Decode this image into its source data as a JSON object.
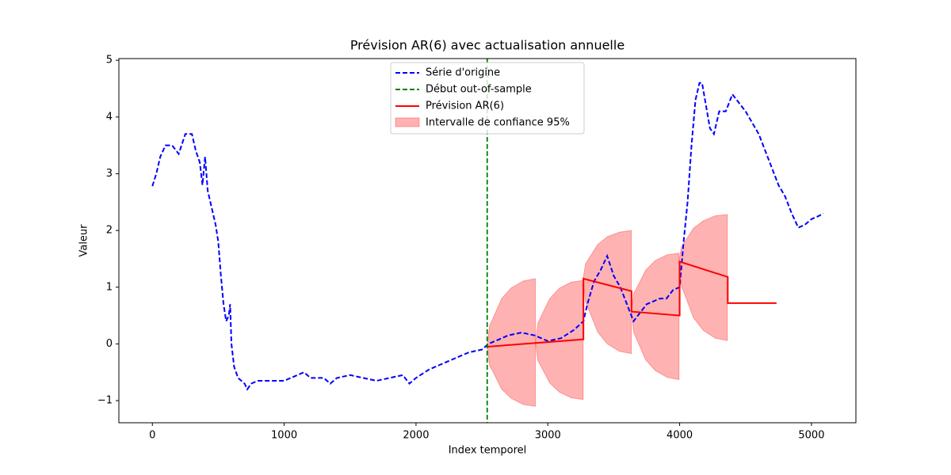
{
  "chart_data": {
    "type": "line",
    "title": "Prévision AR(6) avec actualisation annuelle",
    "xlabel": "Index temporel",
    "ylabel": "Valeur",
    "xlim": [
      -254,
      5337
    ],
    "ylim": [
      -1.39,
      5.03
    ],
    "xticks": [
      0,
      1000,
      2000,
      3000,
      4000,
      5000
    ],
    "yticks": [
      {
        "value": -1,
        "label": "−1"
      },
      0,
      1,
      2,
      3,
      4,
      5
    ],
    "legend": "upper center",
    "series": [
      {
        "name": "Série d'origine",
        "kind": "line",
        "color": "#0000ff",
        "dashed": true,
        "x": [
          0,
          30,
          60,
          100,
          150,
          200,
          250,
          300,
          330,
          360,
          380,
          400,
          420,
          450,
          480,
          500,
          520,
          540,
          560,
          580,
          590,
          600,
          620,
          650,
          700,
          720,
          750,
          800,
          900,
          1000,
          1100,
          1150,
          1200,
          1300,
          1350,
          1400,
          1500,
          1600,
          1700,
          1800,
          1900,
          1950,
          2000,
          2100,
          2200,
          2300,
          2400,
          2500,
          2550,
          2600,
          2700,
          2800,
          2900,
          3000,
          3100,
          3200,
          3270,
          3300,
          3350,
          3400,
          3450,
          3500,
          3550,
          3600,
          3650,
          3700,
          3750,
          3800,
          3850,
          3900,
          3950,
          4000,
          4030,
          4060,
          4090,
          4120,
          4150,
          4170,
          4200,
          4230,
          4260,
          4300,
          4350,
          4400,
          4450,
          4500,
          4550,
          4600,
          4650,
          4700,
          4750,
          4800,
          4850,
          4900,
          4950,
          5000,
          5050,
          5090
        ],
        "values": [
          2.78,
          3.0,
          3.3,
          3.5,
          3.5,
          3.35,
          3.7,
          3.7,
          3.4,
          3.2,
          2.8,
          3.3,
          2.7,
          2.4,
          2.1,
          1.8,
          1.2,
          0.7,
          0.4,
          0.5,
          0.7,
          0.0,
          -0.4,
          -0.6,
          -0.7,
          -0.8,
          -0.7,
          -0.65,
          -0.65,
          -0.65,
          -0.55,
          -0.5,
          -0.6,
          -0.6,
          -0.7,
          -0.6,
          -0.55,
          -0.6,
          -0.65,
          -0.6,
          -0.55,
          -0.7,
          -0.6,
          -0.45,
          -0.35,
          -0.25,
          -0.15,
          -0.1,
          0.0,
          0.05,
          0.15,
          0.2,
          0.15,
          0.05,
          0.1,
          0.25,
          0.4,
          0.7,
          1.1,
          1.3,
          1.55,
          1.2,
          1.0,
          0.7,
          0.4,
          0.55,
          0.7,
          0.75,
          0.8,
          0.8,
          0.95,
          1.0,
          1.8,
          2.5,
          3.5,
          4.3,
          4.6,
          4.6,
          4.2,
          3.8,
          3.7,
          4.1,
          4.1,
          4.4,
          4.25,
          4.1,
          3.9,
          3.7,
          3.4,
          3.1,
          2.8,
          2.6,
          2.3,
          2.05,
          2.1,
          2.2,
          2.25,
          2.3
        ]
      },
      {
        "name": "Début out-of-sample",
        "kind": "vline",
        "color": "#008000",
        "dashed": true,
        "x": 2540
      },
      {
        "name": "Prévision AR(6)",
        "kind": "line",
        "color": "#ff0000",
        "dashed": false,
        "x": [
          2540,
          3270,
          3270,
          3635,
          3635,
          4000,
          4000,
          4365,
          4365,
          4735
        ],
        "values": [
          -0.05,
          0.08,
          1.15,
          0.93,
          0.57,
          0.5,
          1.45,
          1.18,
          0.72,
          0.72
        ]
      },
      {
        "name": "Intervalle de confiance 95%",
        "kind": "band",
        "color": "#ff0000",
        "segments": [
          {
            "x": [
              2540,
              2558,
              2595,
              2650,
              2723,
              2815,
              2906
            ],
            "upper": [
              -0.05,
              0.32,
              0.51,
              0.8,
              0.99,
              1.11,
              1.15
            ],
            "lower": [
              -0.05,
              -0.38,
              -0.54,
              -0.8,
              -0.96,
              -1.07,
              -1.1
            ]
          },
          {
            "x": [
              2906,
              2924,
              2960,
              3015,
              3087,
              3178,
              3268
            ],
            "upper": [
              0.02,
              0.36,
              0.54,
              0.8,
              0.98,
              1.09,
              1.12
            ],
            "lower": [
              0.02,
              -0.29,
              -0.45,
              -0.69,
              -0.85,
              -0.95,
              -0.98
            ]
          },
          {
            "x": [
              3268,
              3286,
              3323,
              3378,
              3451,
              3543,
              3634
            ],
            "upper": [
              1.15,
              1.41,
              1.55,
              1.75,
              1.89,
              1.97,
              2.0
            ],
            "lower": [
              1.15,
              0.74,
              0.53,
              0.21,
              0.0,
              -0.13,
              -0.17
            ]
          },
          {
            "x": [
              3634,
              3652,
              3688,
              3742,
              3815,
              3905,
              3995
            ],
            "upper": [
              0.57,
              0.89,
              1.05,
              1.3,
              1.47,
              1.57,
              1.6
            ],
            "lower": [
              0.57,
              0.2,
              0.01,
              -0.28,
              -0.47,
              -0.59,
              -0.63
            ]
          },
          {
            "x": [
              3995,
              4013,
              4050,
              4105,
              4179,
              4270,
              4362
            ],
            "upper": [
              1.45,
              1.71,
              1.84,
              2.04,
              2.17,
              2.26,
              2.28
            ],
            "lower": [
              1.45,
              1.02,
              0.8,
              0.46,
              0.24,
              0.1,
              0.06
            ]
          }
        ]
      }
    ]
  }
}
